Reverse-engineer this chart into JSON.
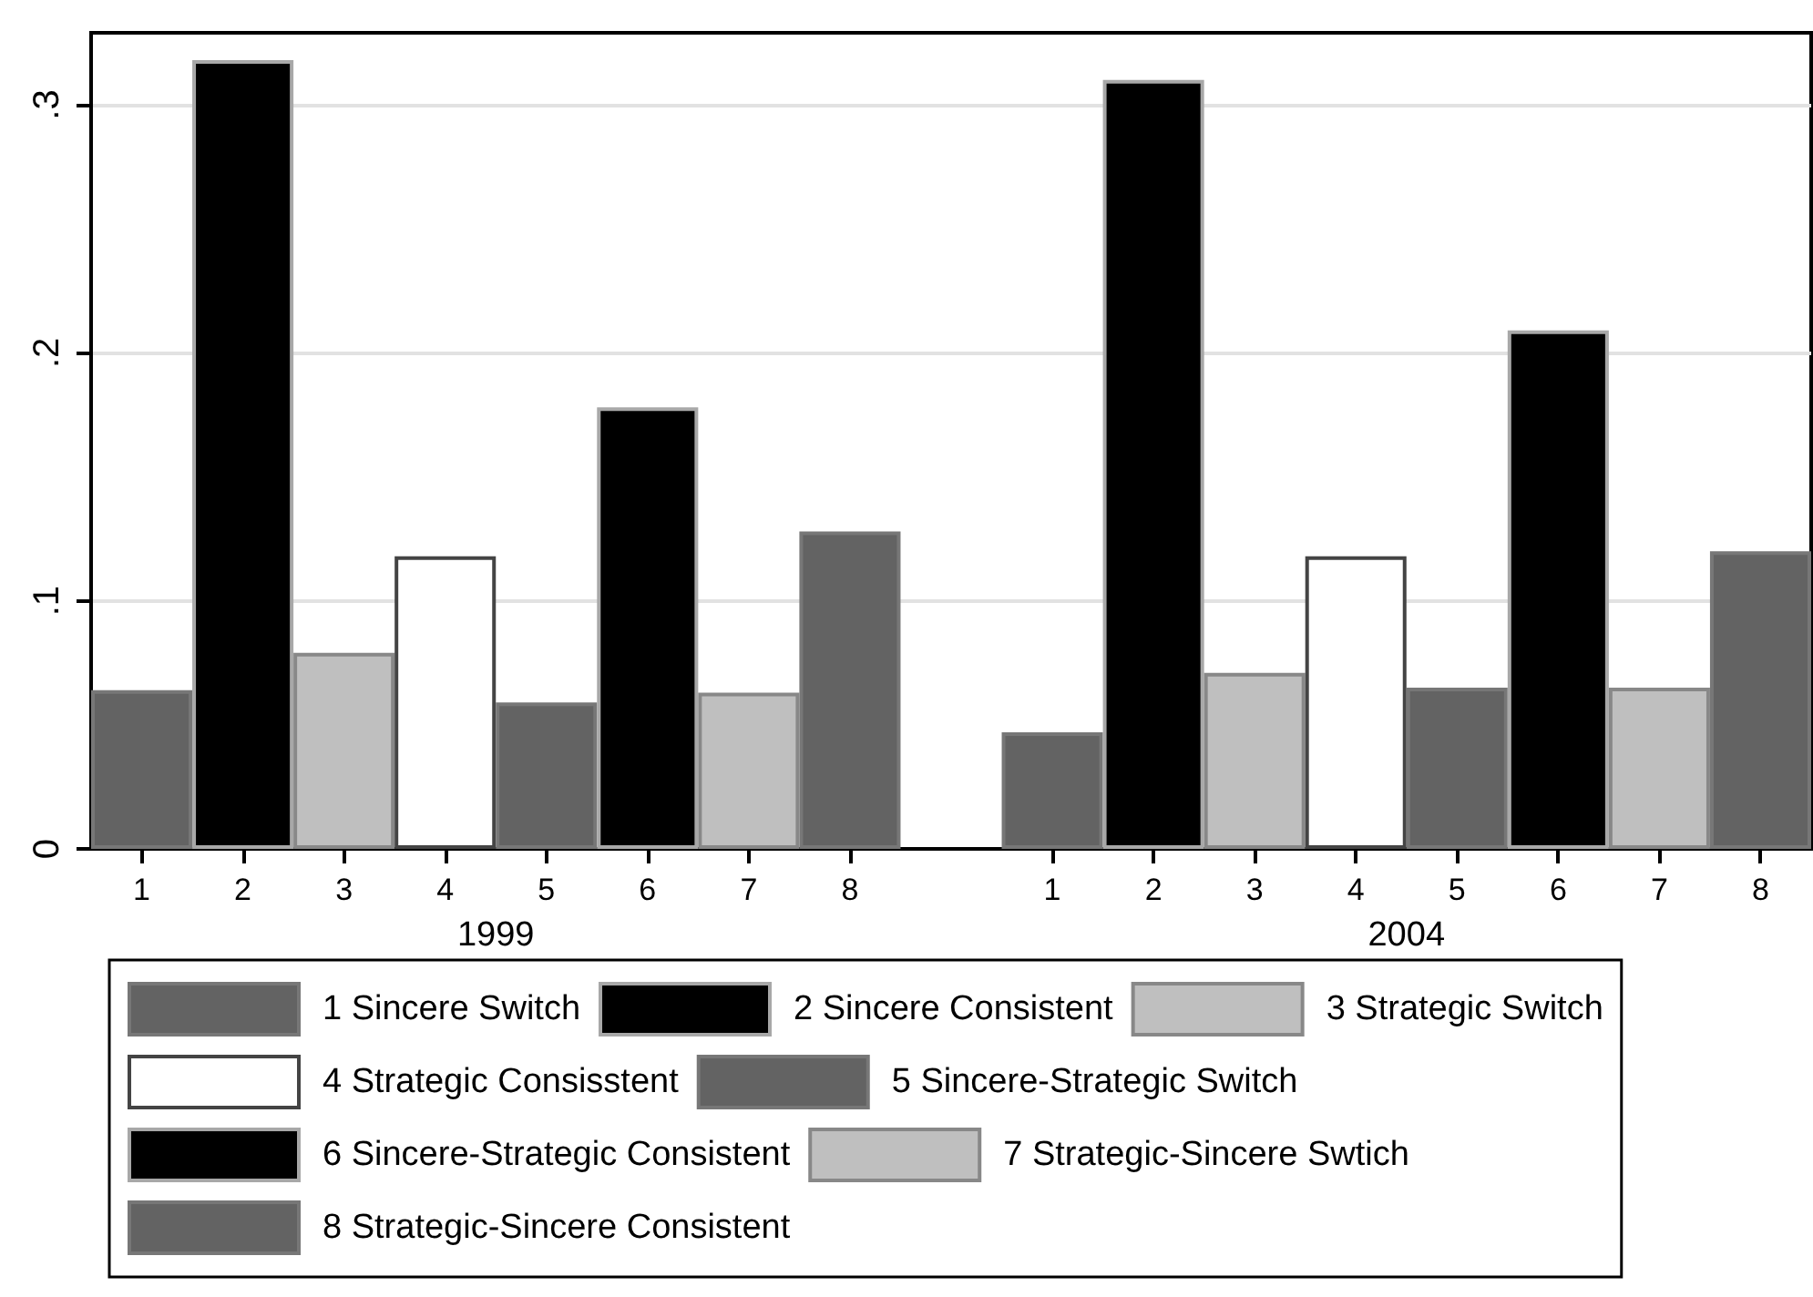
{
  "chart_data": {
    "type": "bar",
    "categories": [
      "1",
      "2",
      "3",
      "4",
      "5",
      "6",
      "7",
      "8",
      null,
      "1",
      "2",
      "3",
      "4",
      "5",
      "6",
      "7",
      "8"
    ],
    "series": [
      {
        "name": "1 Sincere Switch",
        "color": "#636363",
        "values": [
          0.064,
          null,
          null,
          null,
          null,
          null,
          null,
          null,
          null,
          0.047,
          null,
          null,
          null,
          null,
          null,
          null,
          null
        ]
      },
      {
        "name": "2 Sincere Consistent",
        "color": "#000000",
        "values": [
          null,
          0.318,
          null,
          null,
          null,
          null,
          null,
          null,
          null,
          null,
          0.31,
          null,
          null,
          null,
          null,
          null,
          null
        ]
      },
      {
        "name": "3 Strategic Switch",
        "color": "#bfbfbf",
        "values": [
          null,
          null,
          0.079,
          null,
          null,
          null,
          null,
          null,
          null,
          null,
          null,
          0.071,
          null,
          null,
          null,
          null,
          null
        ]
      },
      {
        "name": "4 Strategic Consisstent",
        "color": "#ffffff",
        "values": [
          null,
          null,
          null,
          0.118,
          null,
          null,
          null,
          null,
          null,
          null,
          null,
          null,
          0.118,
          null,
          null,
          null,
          null
        ]
      },
      {
        "name": "5 Sincere-Strategic Switch",
        "color": "#636363",
        "values": [
          null,
          null,
          null,
          null,
          0.059,
          null,
          null,
          null,
          null,
          null,
          null,
          null,
          null,
          0.065,
          null,
          null,
          null
        ]
      },
      {
        "name": "6 Sincere-Strategic Consistent",
        "color": "#000000",
        "values": [
          null,
          null,
          null,
          null,
          null,
          0.178,
          null,
          null,
          null,
          null,
          null,
          null,
          null,
          null,
          0.209,
          null,
          null
        ]
      },
      {
        "name": "7 Strategic-Sincere Swtich",
        "color": "#bfbfbf",
        "values": [
          null,
          null,
          null,
          null,
          null,
          null,
          0.063,
          null,
          null,
          null,
          null,
          null,
          null,
          null,
          null,
          0.065,
          null
        ]
      },
      {
        "name": "8 Strategic-Sincere Consistent",
        "color": "#636363",
        "values": [
          null,
          null,
          null,
          null,
          null,
          null,
          null,
          0.128,
          null,
          null,
          null,
          null,
          null,
          null,
          null,
          null,
          0.12
        ]
      }
    ],
    "annotations": [
      "1999",
      "2004"
    ],
    "ylim": [
      0,
      0.329
    ],
    "yticks": [
      0,
      {
        "value": 0.1,
        "label": ".1"
      },
      {
        "value": 0.2,
        "label": ".2"
      },
      {
        "value": 0.3,
        "label": ".3"
      }
    ],
    "grid": "y",
    "legend": "bottom"
  }
}
